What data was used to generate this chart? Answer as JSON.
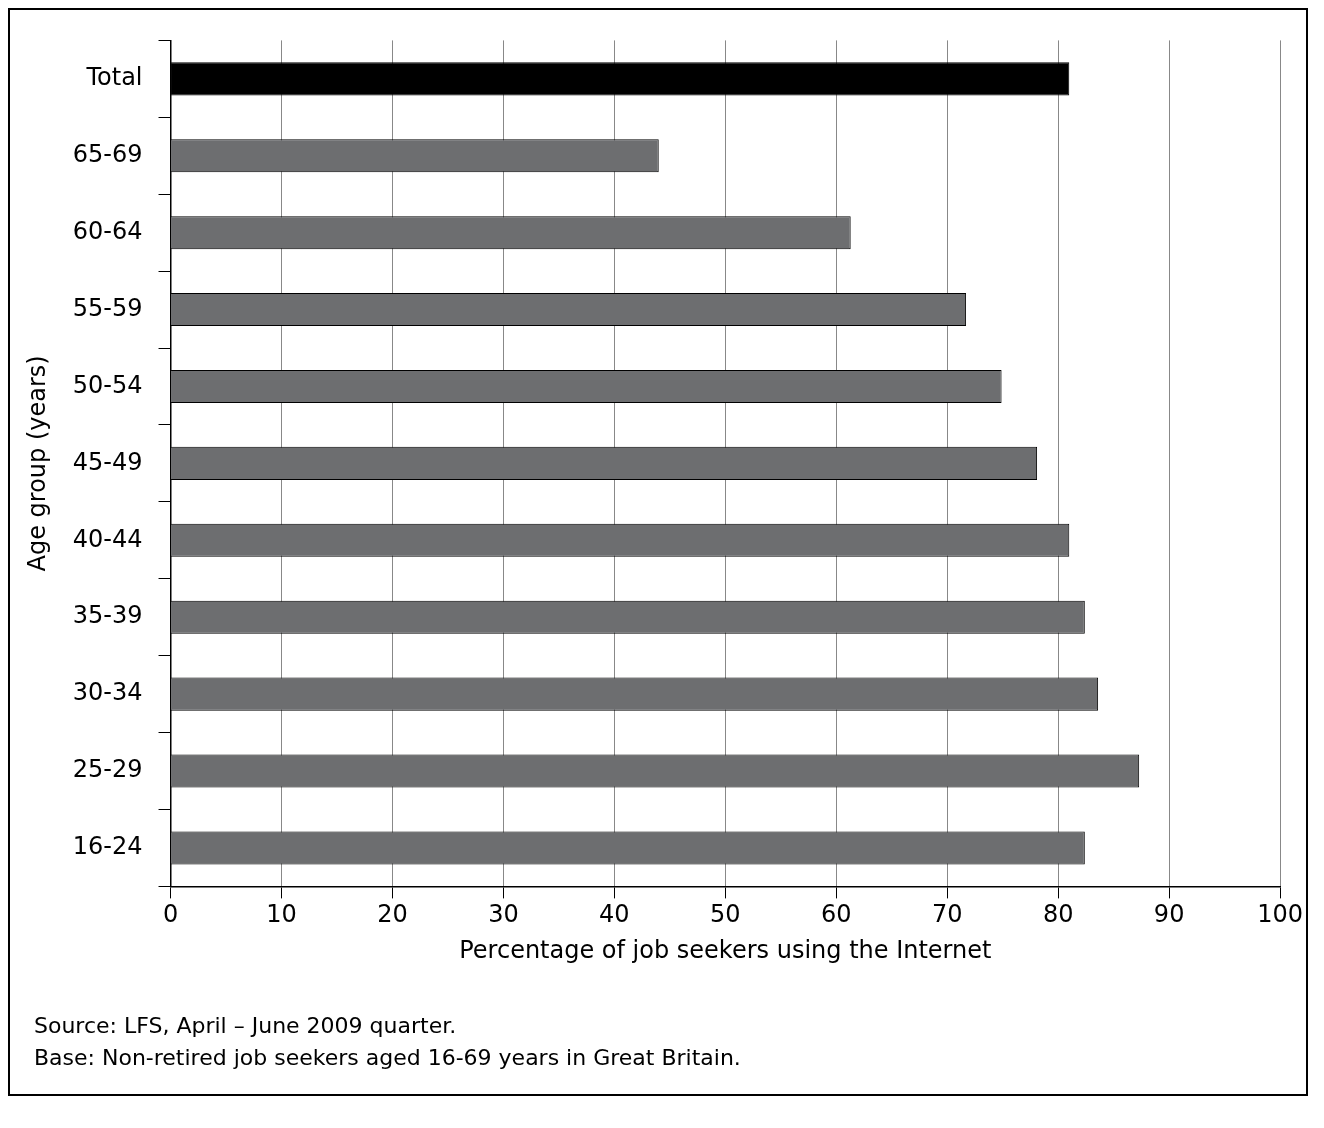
{
  "chart_data": {
    "type": "bar",
    "orientation": "horizontal",
    "xlabel": "Percentage of job seekers using the Internet",
    "ylabel": "Age group (years)",
    "categories": [
      "Total",
      "65-69",
      "60-64",
      "55-59",
      "50-54",
      "45-49",
      "40-44",
      "35-39",
      "30-34",
      "25-29",
      "16-24"
    ],
    "values": [
      81.0,
      44.0,
      61.3,
      71.7,
      74.9,
      78.1,
      81.0,
      82.4,
      83.6,
      87.3,
      82.4
    ],
    "colors": [
      "#000000",
      "#6d6e70",
      "#6d6e70",
      "#6d6e70",
      "#6d6e70",
      "#6d6e70",
      "#6d6e70",
      "#6d6e70",
      "#6d6e70",
      "#6d6e70",
      "#6d6e70"
    ],
    "xlim": [
      0,
      100
    ],
    "xticks": [
      0,
      10,
      20,
      30,
      40,
      50,
      60,
      70,
      80,
      90,
      100
    ],
    "grid": "x",
    "legend": false,
    "annotations": [
      "Source: LFS, April – June 2009 quarter.",
      "Base: Non-retired job seekers aged 16-69 years in Great Britain."
    ]
  }
}
